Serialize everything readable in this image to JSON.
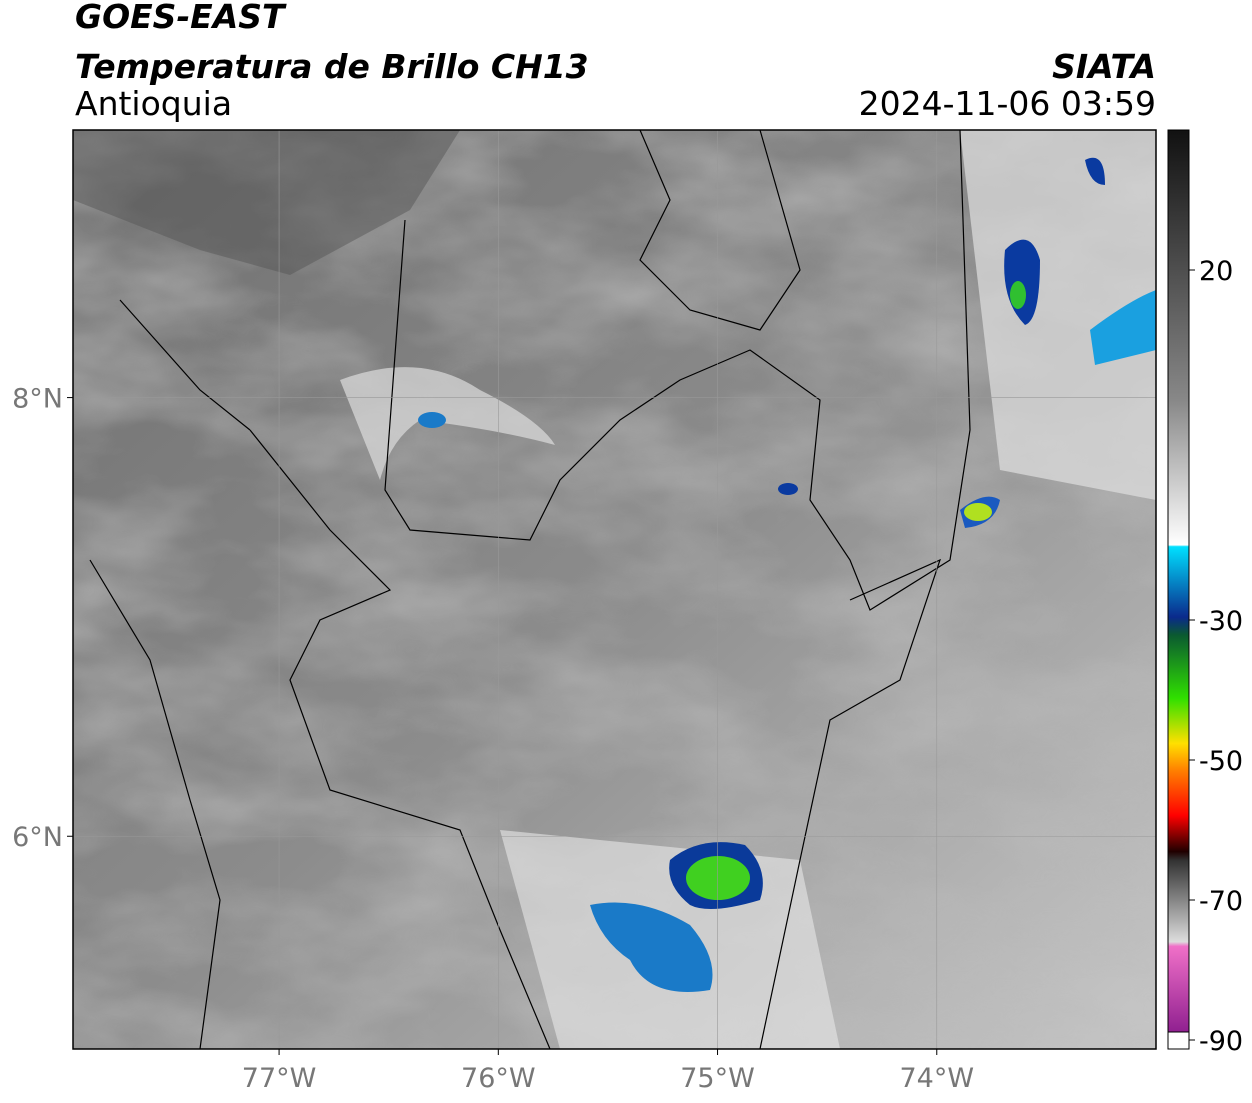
{
  "header": {
    "source": "GOES-EAST",
    "product": "Temperatura de Brillo CH13",
    "region": "Antioquia",
    "agency": "SIATA",
    "datetime": "2024-11-06 03:59"
  },
  "map": {
    "xlim": [
      -77.94,
      -73.0
    ],
    "ylim": [
      5.03,
      9.22
    ],
    "xticks": [
      {
        "value": -77,
        "label": "77°W"
      },
      {
        "value": -76,
        "label": "76°W"
      },
      {
        "value": -75,
        "label": "75°W"
      },
      {
        "value": -74,
        "label": "74°W"
      }
    ],
    "yticks": [
      {
        "value": 8,
        "label": "8°N"
      },
      {
        "value": 6,
        "label": "6°N"
      }
    ],
    "grid": true
  },
  "colorbar": {
    "lim": [
      -90,
      40
    ],
    "ticks": [
      20,
      -30,
      -50,
      -70,
      -90
    ]
  }
}
